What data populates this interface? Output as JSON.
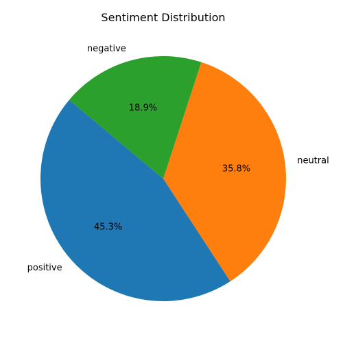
{
  "chart_data": {
    "type": "pie",
    "title": "Sentiment Distribution",
    "start_angle_deg": 140,
    "direction": "counterclockwise",
    "slices": [
      {
        "label": "positive",
        "value": 45.3,
        "pct_label": "45.3%",
        "color": "#1f77b4"
      },
      {
        "label": "neutral",
        "value": 35.8,
        "pct_label": "35.8%",
        "color": "#ff7f0e"
      },
      {
        "label": "negative",
        "value": 18.9,
        "pct_label": "18.9%",
        "color": "#2ca02c"
      }
    ]
  }
}
